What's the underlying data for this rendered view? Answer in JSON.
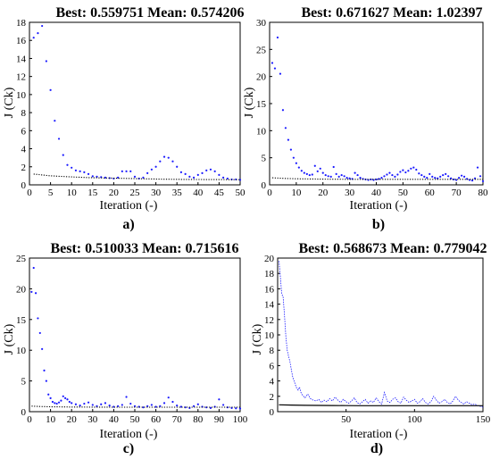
{
  "colors": {
    "best": "#1a1aff",
    "mean": "#000000",
    "axis": "#000000"
  },
  "chart_data": [
    {
      "type": "scatter",
      "panel": "a)",
      "title": "Best: 0.559751 Mean: 0.574206",
      "xlabel": "Iteration (-)",
      "ylabel": "J (Ck)",
      "xlim": [
        0,
        50
      ],
      "ylim": [
        0,
        18
      ],
      "xticks": [
        0,
        5,
        10,
        15,
        20,
        25,
        30,
        35,
        40,
        45,
        50
      ],
      "yticks": [
        0,
        2,
        4,
        6,
        8,
        10,
        12,
        14,
        16,
        18
      ],
      "series": [
        {
          "x": [
            1,
            2,
            3,
            4,
            5,
            6,
            7,
            8,
            9,
            10,
            11,
            12,
            13,
            14,
            15,
            16,
            17,
            18,
            19,
            20,
            21,
            22,
            23,
            24,
            25,
            26,
            27,
            28,
            29,
            30,
            31,
            32,
            33,
            34,
            35,
            36,
            37,
            38,
            39,
            40,
            41,
            42,
            43,
            44,
            45,
            46,
            47,
            48,
            49,
            50
          ],
          "values": [
            16.3,
            16.8,
            17.6,
            13.7,
            10.5,
            7.1,
            5.1,
            3.3,
            2.2,
            1.9,
            1.6,
            1.5,
            1.4,
            1.2,
            0.95,
            0.9,
            0.85,
            0.8,
            0.75,
            0.7,
            0.8,
            1.5,
            1.5,
            1.5,
            0.9,
            0.7,
            0.8,
            1.3,
            1.7,
            2.0,
            2.6,
            3.1,
            3.0,
            2.6,
            2.0,
            1.4,
            1.2,
            0.9,
            0.8,
            1.1,
            1.3,
            1.6,
            1.7,
            1.5,
            1.1,
            0.8,
            0.7,
            0.6,
            0.6,
            0.56
          ]
        },
        {
          "x": [
            1,
            2,
            3,
            4,
            5,
            6,
            7,
            8,
            9,
            10,
            11,
            12,
            13,
            14,
            15,
            16,
            17,
            18,
            19,
            20,
            21,
            22,
            23,
            24,
            25,
            26,
            27,
            28,
            29,
            30,
            31,
            32,
            33,
            34,
            35,
            36,
            37,
            38,
            39,
            40,
            41,
            42,
            43,
            44,
            45,
            46,
            47,
            48,
            49,
            50
          ],
          "values": [
            1.2,
            1.15,
            1.1,
            1.05,
            1.0,
            0.98,
            0.95,
            0.93,
            0.9,
            0.88,
            0.86,
            0.84,
            0.82,
            0.8,
            0.79,
            0.78,
            0.77,
            0.76,
            0.75,
            0.74,
            0.73,
            0.72,
            0.71,
            0.7,
            0.69,
            0.68,
            0.67,
            0.66,
            0.65,
            0.64,
            0.63,
            0.62,
            0.62,
            0.61,
            0.61,
            0.6,
            0.6,
            0.6,
            0.59,
            0.59,
            0.59,
            0.58,
            0.58,
            0.58,
            0.58,
            0.58,
            0.57,
            0.57,
            0.57,
            0.57
          ]
        }
      ]
    },
    {
      "type": "scatter",
      "panel": "b)",
      "title": "Best: 0.671627 Mean: 1.02397",
      "xlabel": "Iteration (-)",
      "ylabel": "J (Ck)",
      "xlim": [
        0,
        80
      ],
      "ylim": [
        0,
        30
      ],
      "xticks": [
        0,
        10,
        20,
        30,
        40,
        50,
        60,
        70,
        80
      ],
      "yticks": [
        0,
        5,
        10,
        15,
        20,
        25,
        30
      ],
      "series": [
        {
          "x": [
            1,
            2,
            3,
            4,
            5,
            6,
            7,
            8,
            9,
            10,
            11,
            12,
            13,
            14,
            15,
            16,
            17,
            18,
            19,
            20,
            21,
            22,
            23,
            24,
            25,
            26,
            27,
            28,
            29,
            30,
            31,
            32,
            33,
            34,
            35,
            36,
            37,
            38,
            39,
            40,
            41,
            42,
            43,
            44,
            45,
            46,
            47,
            48,
            49,
            50,
            51,
            52,
            53,
            54,
            55,
            56,
            57,
            58,
            59,
            60,
            61,
            62,
            63,
            64,
            65,
            66,
            67,
            68,
            69,
            70,
            71,
            72,
            73,
            74,
            75,
            76,
            77,
            78,
            79,
            80
          ],
          "values": [
            22.5,
            21.5,
            27.2,
            20.5,
            13.8,
            10.5,
            8.3,
            6.5,
            5.0,
            4.0,
            3.2,
            2.6,
            2.2,
            2.0,
            1.8,
            1.9,
            3.5,
            2.5,
            3.0,
            2.2,
            1.8,
            1.6,
            1.5,
            3.3,
            2.0,
            1.5,
            1.8,
            1.6,
            1.3,
            1.2,
            1.1,
            2.2,
            1.8,
            1.3,
            1.1,
            1.0,
            0.9,
            1.0,
            0.9,
            1.0,
            1.1,
            1.3,
            1.6,
            1.9,
            2.2,
            1.8,
            1.5,
            1.9,
            2.4,
            2.7,
            2.3,
            2.6,
            3.0,
            3.2,
            2.8,
            2.1,
            1.8,
            1.5,
            1.3,
            2.0,
            1.5,
            1.3,
            1.2,
            1.5,
            1.8,
            2.0,
            1.6,
            1.2,
            1.0,
            0.9,
            1.3,
            1.7,
            1.5,
            1.1,
            0.9,
            0.8,
            1.2,
            3.2,
            1.6,
            0.67
          ]
        },
        {
          "x": [
            1,
            5,
            10,
            15,
            20,
            25,
            30,
            35,
            40,
            45,
            50,
            55,
            60,
            65,
            70,
            75,
            80
          ],
          "values": [
            1.3,
            1.2,
            1.12,
            1.08,
            1.05,
            1.04,
            1.03,
            1.03,
            1.02,
            1.02,
            1.02,
            1.02,
            1.02,
            1.02,
            1.02,
            1.02,
            1.02
          ]
        }
      ]
    },
    {
      "type": "scatter",
      "panel": "c)",
      "title": "Best: 0.510033 Mean: 0.715616",
      "xlabel": "Iteration (-)",
      "ylabel": "J (Ck)",
      "xlim": [
        0,
        100
      ],
      "ylim": [
        0,
        25
      ],
      "xticks": [
        0,
        10,
        20,
        30,
        40,
        50,
        60,
        70,
        80,
        90,
        100
      ],
      "yticks": [
        0,
        5,
        10,
        15,
        20,
        25
      ],
      "series": [
        {
          "x": [
            1,
            2,
            3,
            4,
            5,
            6,
            7,
            8,
            9,
            10,
            11,
            12,
            13,
            14,
            15,
            16,
            17,
            18,
            19,
            20,
            22,
            24,
            26,
            28,
            30,
            32,
            34,
            36,
            38,
            40,
            42,
            44,
            46,
            48,
            50,
            52,
            54,
            56,
            58,
            60,
            62,
            64,
            66,
            68,
            70,
            72,
            74,
            76,
            78,
            80,
            82,
            84,
            86,
            88,
            90,
            92,
            94,
            96,
            98,
            100
          ],
          "values": [
            19.5,
            23.4,
            19.3,
            15.2,
            12.8,
            10.2,
            6.7,
            5.0,
            2.8,
            2.2,
            1.6,
            1.4,
            1.3,
            1.5,
            1.8,
            2.5,
            2.2,
            2.0,
            1.6,
            1.4,
            1.2,
            1.0,
            1.3,
            1.5,
            1.1,
            0.9,
            1.2,
            1.4,
            1.0,
            0.8,
            0.9,
            1.1,
            2.4,
            1.3,
            0.9,
            0.8,
            0.7,
            0.9,
            1.1,
            0.8,
            0.9,
            1.4,
            2.3,
            1.6,
            1.0,
            0.8,
            0.7,
            0.6,
            0.9,
            1.2,
            0.8,
            0.7,
            0.6,
            0.8,
            2.0,
            1.1,
            0.7,
            0.6,
            0.55,
            0.51
          ]
        },
        {
          "x": [
            1,
            5,
            10,
            20,
            30,
            40,
            50,
            60,
            70,
            80,
            90,
            100
          ],
          "values": [
            0.9,
            0.85,
            0.8,
            0.76,
            0.74,
            0.73,
            0.72,
            0.72,
            0.72,
            0.72,
            0.72,
            0.72
          ]
        }
      ]
    },
    {
      "type": "line",
      "panel": "d)",
      "title": "Best: 0.568673 Mean: 0.779042",
      "xlabel": "Iteration (-)",
      "ylabel": "J (Ck)",
      "xlim": [
        0,
        150
      ],
      "ylim": [
        0,
        20
      ],
      "xticks": [
        50,
        100,
        150
      ],
      "yticks": [
        0,
        2,
        4,
        6,
        8,
        10,
        12,
        14,
        16,
        18,
        20
      ],
      "series": [
        {
          "x": [
            1,
            2,
            3,
            4,
            5,
            6,
            7,
            8,
            9,
            10,
            11,
            12,
            13,
            14,
            15,
            16,
            17,
            18,
            19,
            20,
            22,
            24,
            26,
            28,
            30,
            32,
            34,
            36,
            38,
            40,
            42,
            44,
            46,
            48,
            50,
            52,
            54,
            56,
            58,
            60,
            62,
            64,
            66,
            68,
            70,
            72,
            74,
            76,
            78,
            80,
            82,
            84,
            86,
            88,
            90,
            92,
            94,
            96,
            98,
            100,
            102,
            104,
            106,
            108,
            110,
            112,
            114,
            116,
            118,
            120,
            122,
            124,
            126,
            128,
            130,
            132,
            134,
            136,
            138,
            140,
            142,
            144,
            146,
            148,
            150
          ],
          "values": [
            19.6,
            17.5,
            15.3,
            15.0,
            12.5,
            9.8,
            8.0,
            7.2,
            6.5,
            5.5,
            4.5,
            4.0,
            3.5,
            3.0,
            2.8,
            3.2,
            2.5,
            2.2,
            2.0,
            1.8,
            2.3,
            1.7,
            1.5,
            1.4,
            1.6,
            1.2,
            1.5,
            1.3,
            1.7,
            1.4,
            1.9,
            1.5,
            1.2,
            1.6,
            1.3,
            1.1,
            1.4,
            1.8,
            1.2,
            1.0,
            1.3,
            1.6,
            1.1,
            1.4,
            1.2,
            1.8,
            1.3,
            1.0,
            2.5,
            1.4,
            1.2,
            1.6,
            1.8,
            1.3,
            1.1,
            1.9,
            1.5,
            1.2,
            1.4,
            1.6,
            1.1,
            1.3,
            1.7,
            1.2,
            1.0,
            1.3,
            2.0,
            1.5,
            1.1,
            1.3,
            1.6,
            1.2,
            1.0,
            1.4,
            2.0,
            1.5,
            1.2,
            1.0,
            1.3,
            1.1,
            0.9,
            1.0,
            0.8,
            0.7,
            0.57
          ]
        },
        {
          "x": [
            1,
            10,
            20,
            30,
            40,
            50,
            60,
            70,
            80,
            90,
            100,
            110,
            120,
            130,
            140,
            150
          ],
          "values": [
            0.9,
            0.86,
            0.83,
            0.81,
            0.8,
            0.79,
            0.78,
            0.78,
            0.78,
            0.78,
            0.78,
            0.78,
            0.78,
            0.78,
            0.78,
            0.78
          ]
        }
      ]
    }
  ]
}
